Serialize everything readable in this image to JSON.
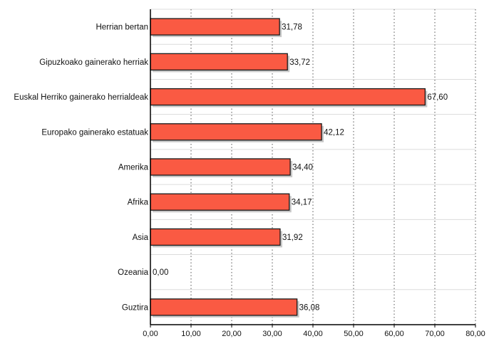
{
  "chart_data": {
    "type": "bar",
    "orientation": "horizontal",
    "title": "",
    "xlabel": "",
    "ylabel": "",
    "categories": [
      "Herrian bertan",
      "Gipuzkoako gainerako herriak",
      "Euskal Herriko gainerako herrialdeak",
      "Europako gainerako estatuak",
      "Amerika",
      "Afrika",
      "Asia",
      "Ozeania",
      "Guztira"
    ],
    "values": [
      31.78,
      33.72,
      67.6,
      42.12,
      34.4,
      34.17,
      31.92,
      0,
      36.08
    ],
    "value_labels": [
      "31,78",
      "33,72",
      "67,60",
      "42,12",
      "34,40",
      "34,17",
      "31,92",
      "0,00",
      "36,08"
    ],
    "xlim": [
      0,
      80
    ],
    "x_ticks": [
      0,
      10,
      20,
      30,
      40,
      50,
      60,
      70,
      80
    ],
    "x_tick_labels": [
      "0,00",
      "10,00",
      "20,00",
      "30,00",
      "40,00",
      "50,00",
      "60,00",
      "70,00",
      "80,00"
    ],
    "grid": true,
    "legend": "none",
    "colors": {
      "bar_fill": "#fa5a43",
      "bar_stroke": "#1a1a1a",
      "shadow": "#c8c8c8",
      "grid": "#555555",
      "row_line": "#dcdcdc",
      "axis": "#000000"
    }
  }
}
